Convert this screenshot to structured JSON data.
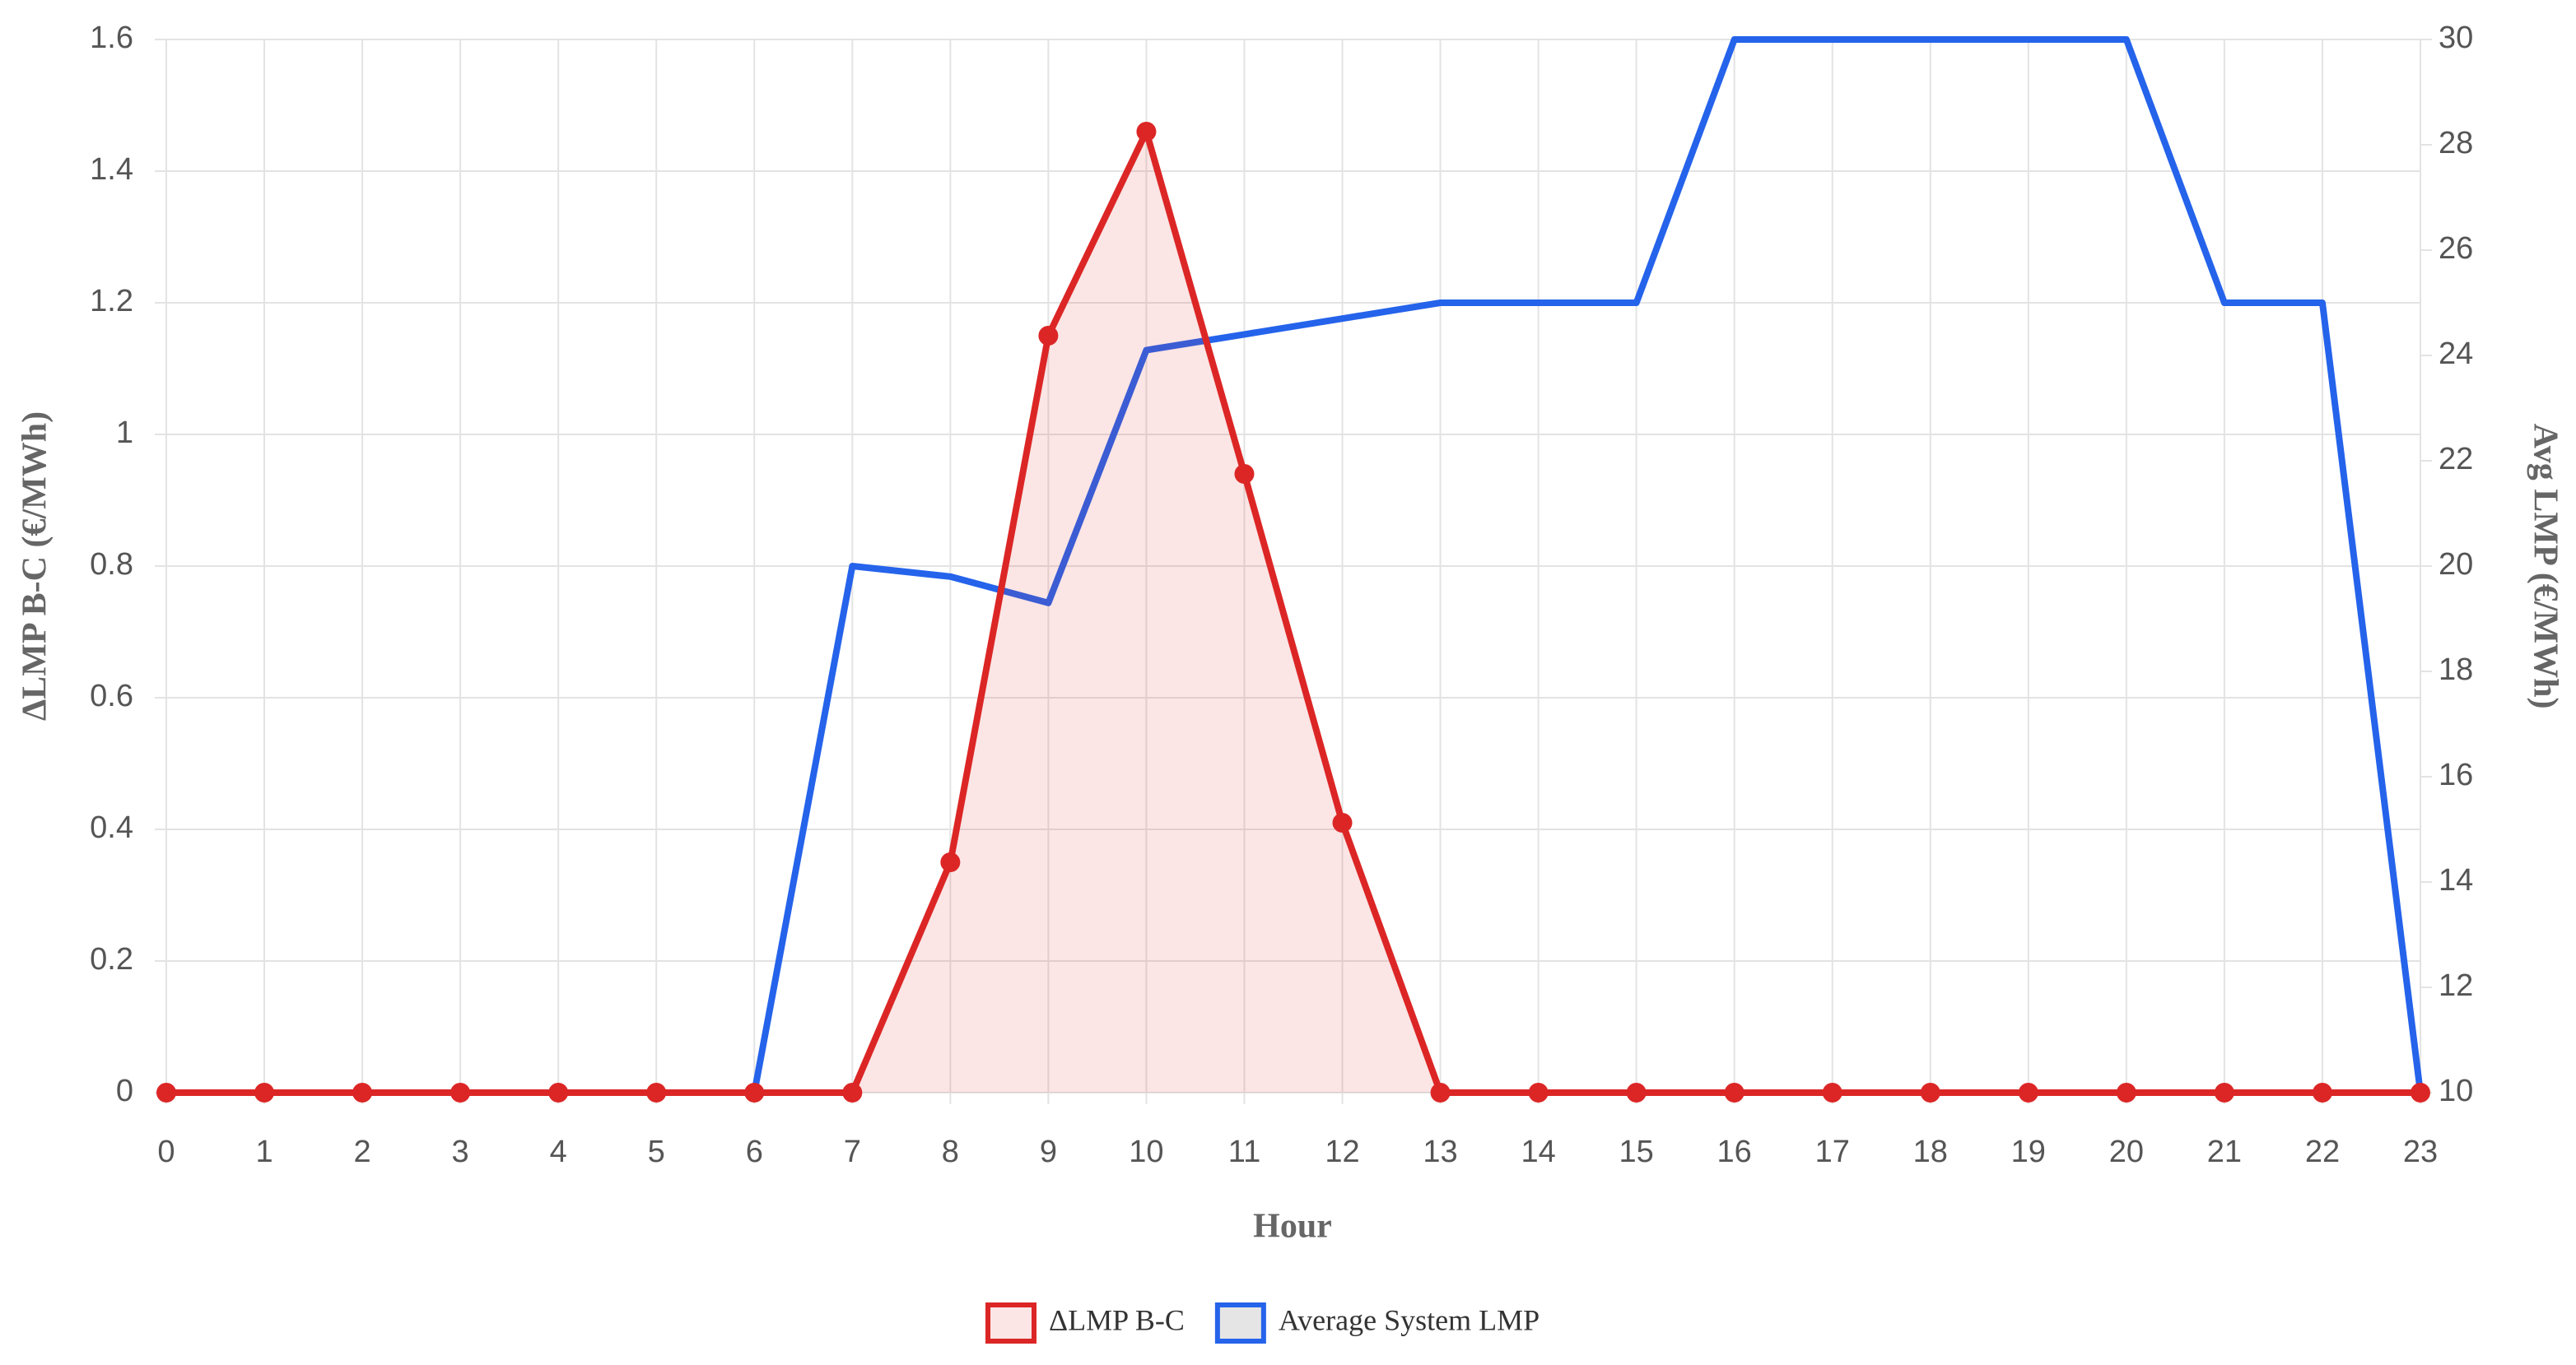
{
  "chart_data": {
    "type": "line",
    "x_label": "Hour",
    "y_label": "ΔLMP B-C (€/MWh)",
    "y2_label": "Avg LMP (€/MWh)",
    "categories": [
      0,
      1,
      2,
      3,
      4,
      5,
      6,
      7,
      8,
      9,
      10,
      11,
      12,
      13,
      14,
      15,
      16,
      17,
      18,
      19,
      20,
      21,
      22,
      23
    ],
    "series": [
      {
        "name": "ΔLMP B-C",
        "color": "#dc2626",
        "fill": "rgba(220,38,38,0.12)",
        "markers": true,
        "values": [
          0,
          0,
          0,
          0,
          0,
          0,
          0,
          0,
          0.35,
          1.15,
          1.46,
          0.94,
          0.41,
          0,
          0,
          0,
          0,
          0,
          0,
          0,
          0,
          0,
          0,
          0
        ]
      },
      {
        "name": "Average System LMP",
        "color": "#2563eb",
        "axis": "y2",
        "markers": false,
        "values": [
          10,
          10,
          10,
          10,
          10,
          10,
          10,
          20,
          19.8,
          19.3,
          24.1,
          24.4,
          24.7,
          25,
          25,
          25,
          30,
          30,
          30,
          30,
          30,
          25,
          25,
          10
        ]
      }
    ],
    "ylim": [
      0,
      1.6
    ],
    "yticks": [
      0,
      0.2,
      0.4,
      0.6,
      0.8,
      1.0,
      1.2,
      1.4,
      1.6
    ],
    "y2lim": [
      10,
      30
    ],
    "y2ticks": [
      10,
      12,
      14,
      16,
      18,
      20,
      22,
      24,
      26,
      28,
      30
    ],
    "grid": true,
    "legend": "bottom"
  }
}
